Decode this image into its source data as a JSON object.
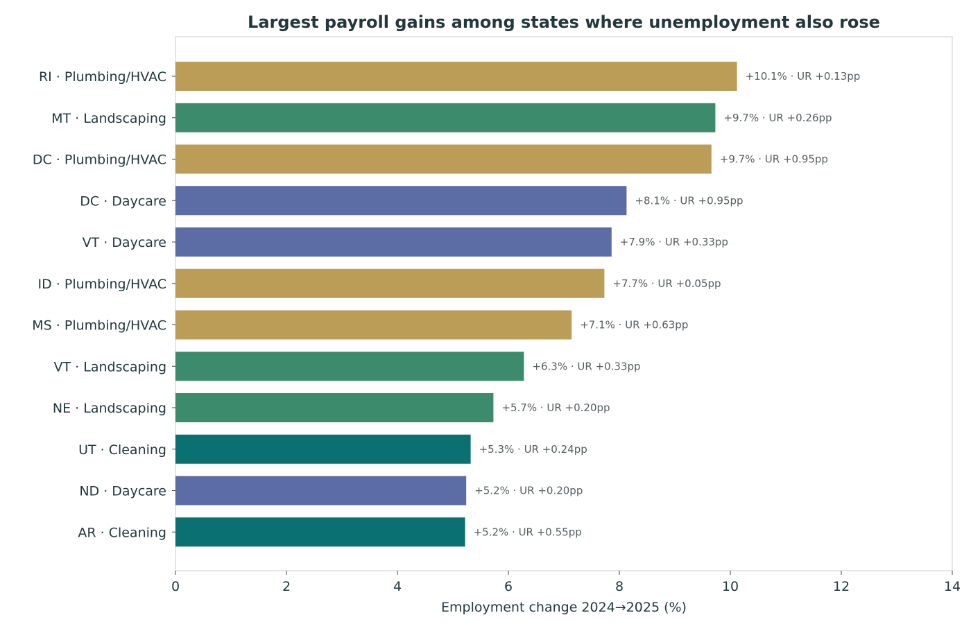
{
  "chart_data": {
    "type": "bar",
    "orientation": "horizontal",
    "title": "Largest payroll gains among states where unemployment also rose",
    "xlabel": "Employment change 2024→2025 (%)",
    "ylabel": "",
    "xlim": [
      0,
      14
    ],
    "xticks": [
      "0",
      "2",
      "4",
      "6",
      "8",
      "10",
      "12",
      "14"
    ],
    "grid": false,
    "categories": [
      "RI · Plumbing/HVAC",
      "MT · Landscaping",
      "DC · Plumbing/HVAC",
      "DC · Daycare",
      "VT · Daycare",
      "ID · Plumbing/HVAC",
      "MS · Plumbing/HVAC",
      "VT · Landscaping",
      "NE · Landscaping",
      "UT · Cleaning",
      "ND · Daycare",
      "AR · Cleaning"
    ],
    "values": [
      10.12,
      9.73,
      9.66,
      8.13,
      7.86,
      7.73,
      7.14,
      6.28,
      5.73,
      5.32,
      5.24,
      5.22
    ],
    "industries": [
      "Plumbing/HVAC",
      "Landscaping",
      "Plumbing/HVAC",
      "Daycare",
      "Daycare",
      "Plumbing/HVAC",
      "Plumbing/HVAC",
      "Landscaping",
      "Landscaping",
      "Cleaning",
      "Daycare",
      "Cleaning"
    ],
    "data_labels": [
      "+10.1% · UR +0.13pp",
      "+9.7% · UR +0.26pp",
      "+9.7% · UR +0.95pp",
      "+8.1% · UR +0.95pp",
      "+7.9% · UR +0.33pp",
      "+7.7% · UR +0.05pp",
      "+7.1% · UR +0.63pp",
      "+6.3% · UR +0.33pp",
      "+5.7% · UR +0.20pp",
      "+5.3% · UR +0.24pp",
      "+5.2% · UR +0.20pp",
      "+5.2% · UR +0.55pp"
    ],
    "colors": {
      "Plumbing/HVAC": "#bc9d58",
      "Landscaping": "#3c8b6d",
      "Daycare": "#5c6ca5",
      "Cleaning": "#0a7072"
    },
    "axis_color": "#dddddd",
    "text_color": "#22383d"
  }
}
